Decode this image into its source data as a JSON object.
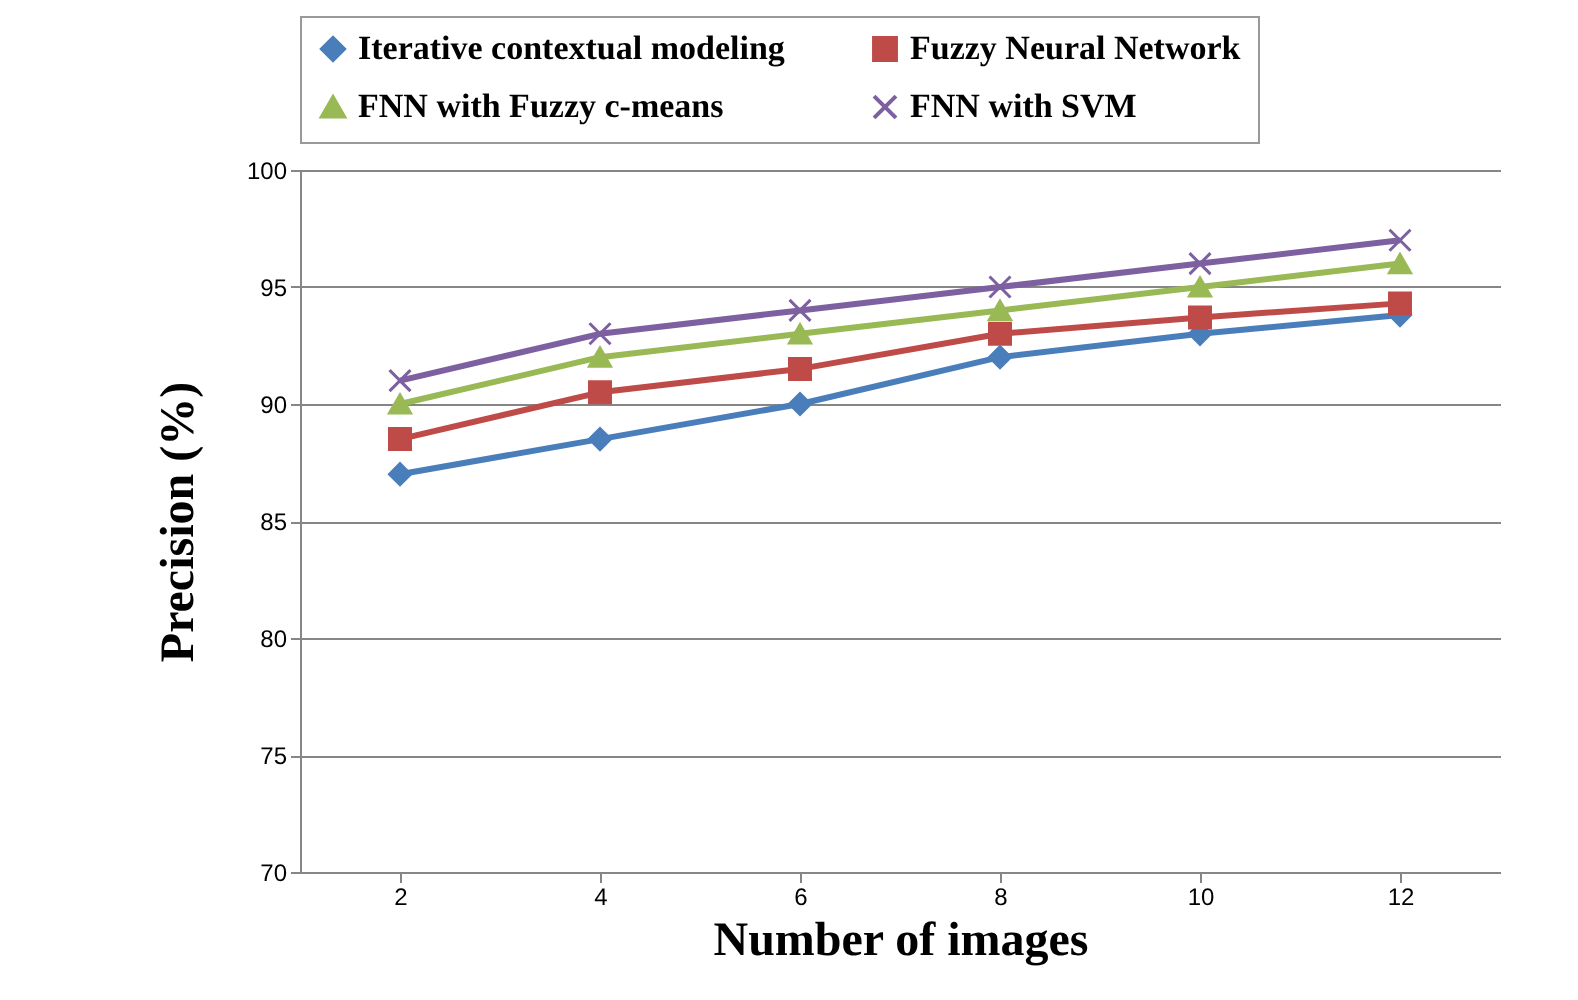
{
  "chart_data": {
    "type": "line",
    "xlabel": "Number of  images",
    "ylabel": "Precision    (%)",
    "categories": [
      "2",
      "4",
      "6",
      "8",
      "10",
      "12"
    ],
    "series": [
      {
        "name": "Iterative contextual modeling",
        "color": "#4a7ebb",
        "marker": "diamond",
        "values": [
          87,
          88.5,
          90,
          92,
          93,
          93.8
        ]
      },
      {
        "name": "Fuzzy Neural Network",
        "color": "#be4b48",
        "marker": "square",
        "values": [
          88.5,
          90.5,
          91.5,
          93,
          93.7,
          94.3
        ]
      },
      {
        "name": "FNN with  Fuzzy c-means",
        "color": "#98b954",
        "marker": "triangle",
        "values": [
          90,
          92,
          93,
          94,
          95,
          96
        ]
      },
      {
        "name": "FNN with SVM",
        "color": "#7d60a0",
        "marker": "cross",
        "values": [
          91,
          93,
          94,
          95,
          96,
          97
        ]
      }
    ],
    "ylim": [
      70,
      100
    ],
    "yticks": [
      70,
      75,
      80,
      85,
      90,
      95,
      100
    ],
    "grid": "y",
    "legend": "top"
  }
}
